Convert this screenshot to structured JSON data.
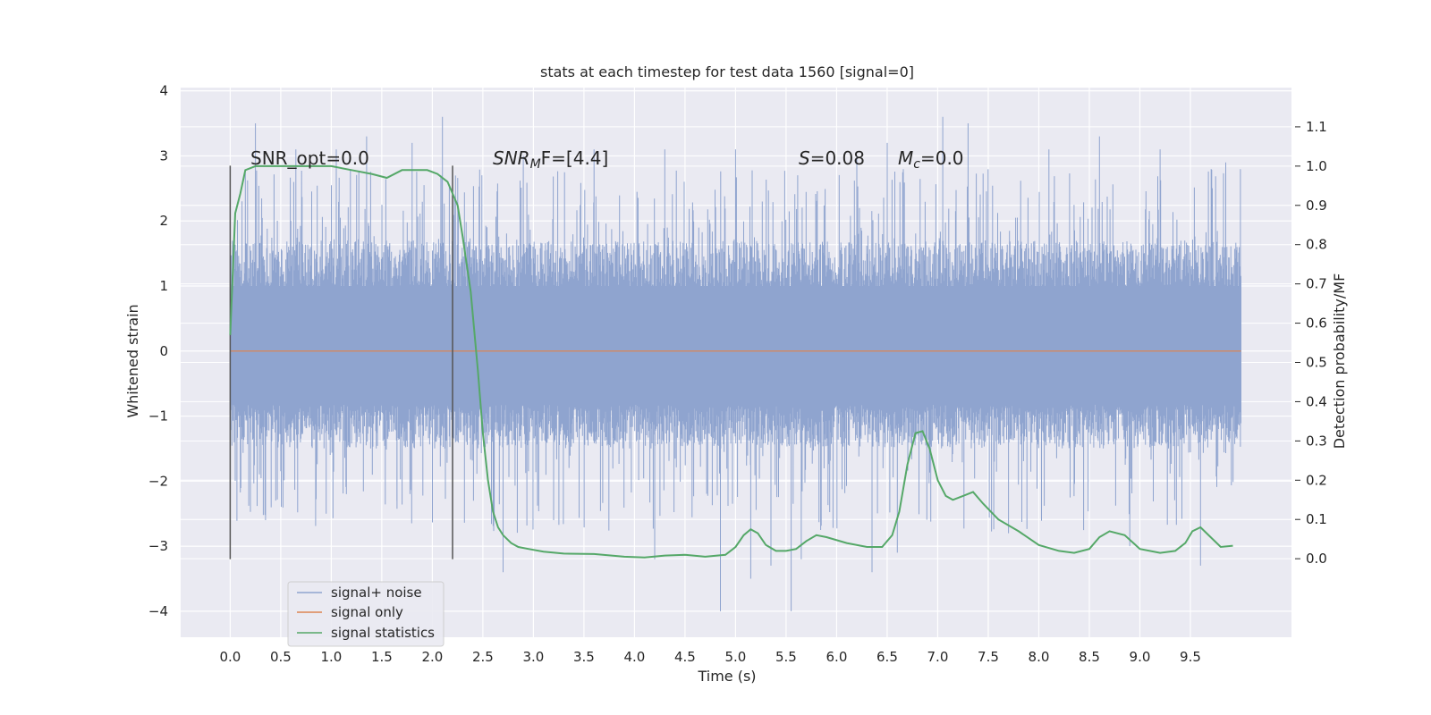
{
  "chart_data": {
    "type": "line",
    "title": "stats at each timestep for test data 1560 [signal=0]",
    "xlabel": "Time (s)",
    "ylabel_left": "Whitened strain",
    "ylabel_right": "Detection probability/MF",
    "xlim": [
      -0.49,
      10.5
    ],
    "ylim_left": [
      -4.4,
      4.05
    ],
    "ylim_right": [
      -0.2,
      1.2
    ],
    "x_ticks": [
      "0.0",
      "0.5",
      "1.0",
      "1.5",
      "2.0",
      "2.5",
      "3.0",
      "3.5",
      "4.0",
      "4.5",
      "5.0",
      "5.5",
      "6.0",
      "6.5",
      "7.0",
      "7.5",
      "8.0",
      "8.5",
      "9.0",
      "9.5"
    ],
    "y_left_ticks": [
      "−4",
      "−3",
      "−2",
      "−1",
      "0",
      "1",
      "2",
      "3",
      "4"
    ],
    "y_right_ticks": [
      "0.0",
      "0.1",
      "0.2",
      "0.3",
      "0.4",
      "0.5",
      "0.6",
      "0.7",
      "0.8",
      "0.9",
      "1.0",
      "1.1"
    ],
    "grid": true,
    "legend_position": "lower-left",
    "annotations": {
      "snr_opt": "SNR_opt=0.0",
      "snr_mf_base": "SNR",
      "snr_mf_sub": "M",
      "snr_mf_rest": "F=[4.4]",
      "s_italic": "S",
      "s_value": "=0.08",
      "mc_base": "M",
      "mc_sub": "c",
      "mc_value": "=0.0"
    },
    "vertical_markers_x": [
      0.0,
      2.2
    ],
    "series": [
      {
        "name": "signal+ noise",
        "color": "#8fa4cf",
        "noise_band": [
          -1.5,
          1.7
        ],
        "x_range": [
          0.0,
          10.0
        ],
        "spikes": [
          [
            0.25,
            3.5
          ],
          [
            0.35,
            -2.6
          ],
          [
            0.65,
            3.1
          ],
          [
            1.05,
            3.1
          ],
          [
            1.35,
            3.3
          ],
          [
            1.8,
            3.2
          ],
          [
            2.1,
            3.6
          ],
          [
            2.7,
            -3.4
          ],
          [
            3.2,
            -2.6
          ],
          [
            4.2,
            -3.2
          ],
          [
            4.3,
            3.1
          ],
          [
            4.85,
            -4.0
          ],
          [
            5.15,
            -3.5
          ],
          [
            5.35,
            -3.3
          ],
          [
            5.55,
            -4.0
          ],
          [
            5.65,
            -3.2
          ],
          [
            6.35,
            -3.4
          ],
          [
            6.5,
            3.2
          ],
          [
            6.6,
            -3.1
          ],
          [
            7.05,
            3.6
          ],
          [
            7.3,
            3.5
          ],
          [
            8.6,
            3.3
          ],
          [
            9.6,
            -3.3
          ],
          [
            9.85,
            2.9
          ],
          [
            8.1,
            3.1
          ],
          [
            3.6,
            3.1
          ],
          [
            2.9,
            3.0
          ],
          [
            1.15,
            -2.2
          ],
          [
            0.95,
            -2.5
          ],
          [
            1.65,
            -2.3
          ],
          [
            7.7,
            -2.8
          ],
          [
            8.9,
            -3.0
          ],
          [
            9.2,
            3.1
          ],
          [
            6.2,
            3.0
          ],
          [
            5.0,
            3.1
          ]
        ]
      },
      {
        "name": "signal only",
        "color": "#dd8452",
        "x": [
          0.0,
          10.0
        ],
        "y": [
          0.0,
          0.0
        ]
      },
      {
        "name": "signal statistics",
        "color": "#55a868",
        "axis": "right",
        "x": [
          0.0,
          0.05,
          0.1,
          0.15,
          0.25,
          0.4,
          0.6,
          0.8,
          1.0,
          1.2,
          1.4,
          1.55,
          1.7,
          1.85,
          1.95,
          2.05,
          2.15,
          2.25,
          2.3,
          2.38,
          2.45,
          2.5,
          2.55,
          2.6,
          2.65,
          2.7,
          2.78,
          2.85,
          2.95,
          3.1,
          3.3,
          3.6,
          3.9,
          4.1,
          4.3,
          4.5,
          4.7,
          4.9,
          5.0,
          5.08,
          5.15,
          5.22,
          5.3,
          5.4,
          5.5,
          5.6,
          5.7,
          5.8,
          5.9,
          6.1,
          6.3,
          6.45,
          6.55,
          6.62,
          6.7,
          6.78,
          6.85,
          6.92,
          7.0,
          7.08,
          7.15,
          7.25,
          7.35,
          7.45,
          7.6,
          7.8,
          8.0,
          8.2,
          8.35,
          8.5,
          8.6,
          8.7,
          8.85,
          9.0,
          9.2,
          9.35,
          9.45,
          9.52,
          9.6,
          9.7,
          9.8,
          9.92
        ],
        "y": [
          0.57,
          0.88,
          0.93,
          0.99,
          1.0,
          1.0,
          1.0,
          1.0,
          1.0,
          0.99,
          0.98,
          0.97,
          0.99,
          0.99,
          0.99,
          0.98,
          0.96,
          0.9,
          0.82,
          0.68,
          0.48,
          0.32,
          0.2,
          0.12,
          0.08,
          0.06,
          0.04,
          0.03,
          0.025,
          0.018,
          0.013,
          0.012,
          0.005,
          0.003,
          0.008,
          0.01,
          0.005,
          0.01,
          0.03,
          0.06,
          0.075,
          0.065,
          0.035,
          0.02,
          0.02,
          0.025,
          0.045,
          0.06,
          0.055,
          0.04,
          0.03,
          0.03,
          0.06,
          0.12,
          0.24,
          0.32,
          0.325,
          0.28,
          0.2,
          0.16,
          0.15,
          0.16,
          0.17,
          0.14,
          0.1,
          0.07,
          0.035,
          0.02,
          0.015,
          0.025,
          0.055,
          0.07,
          0.06,
          0.025,
          0.015,
          0.02,
          0.04,
          0.07,
          0.08,
          0.055,
          0.03,
          0.033
        ]
      }
    ]
  }
}
